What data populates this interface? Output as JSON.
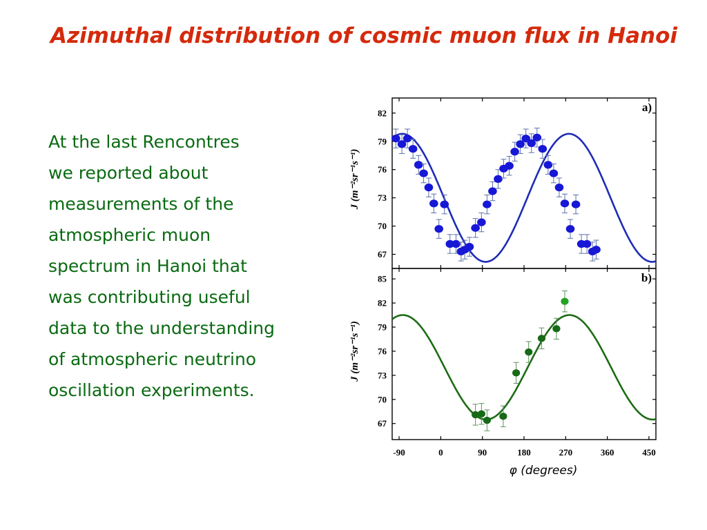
{
  "slide": {
    "title": "Azimuthal distribution of cosmic muon flux in Hanoi",
    "body_lines": [
      "At the last Rencontres",
      "we reported about",
      "measurements of the",
      "atmospheric muon",
      "spectrum in Hanoi that",
      "was contributing useful",
      "data to the understanding",
      "of atmospheric neutrino",
      "oscillation experiments."
    ]
  },
  "colors": {
    "title": "#d42a0c",
    "text": "#0a6a12",
    "panel_a_fit": "#1e2bb8",
    "panel_a_points": "#1717d6",
    "panel_b_fit": "#1d6b14",
    "panel_b_points": "#176a17",
    "panel_b_highlight": "#22a322"
  },
  "chart_data": [
    {
      "type": "scatter",
      "panel_label": "a)",
      "ylabel": "J (m⁻²sr⁻¹s⁻¹)",
      "xlabel": "",
      "xlim": [
        -105,
        465
      ],
      "ylim": [
        65.5,
        83.6
      ],
      "xticks": [],
      "yticks": [
        67,
        70,
        73,
        76,
        79,
        82
      ],
      "fit": {
        "offset": 73.0,
        "amplitude": 6.8,
        "period": 360,
        "max_at": 277
      },
      "series": [
        {
          "error": 1.0,
          "points": [
            [
              -97,
              79.3
            ],
            [
              -84,
              78.7
            ],
            [
              -72,
              79.3
            ],
            [
              -60,
              78.2
            ],
            [
              -48,
              76.5
            ],
            [
              -37,
              75.6
            ],
            [
              -26,
              74.1
            ],
            [
              -15,
              72.4
            ],
            [
              -4,
              69.7
            ],
            [
              8,
              72.3
            ],
            [
              20,
              68.1
            ],
            [
              33,
              68.1
            ],
            [
              44,
              67.3
            ],
            [
              52,
              67.5
            ],
            [
              62,
              67.8
            ],
            [
              75,
              69.8
            ],
            [
              88,
              70.4
            ],
            [
              100,
              72.3
            ],
            [
              112,
              73.7
            ],
            [
              124,
              75.0
            ],
            [
              136,
              76.1
            ],
            [
              148,
              76.4
            ],
            [
              160,
              77.9
            ],
            [
              172,
              78.7
            ],
            [
              184,
              79.3
            ],
            [
              196,
              78.8
            ],
            [
              208,
              79.4
            ],
            [
              220,
              78.2
            ],
            [
              232,
              76.5
            ],
            [
              244,
              75.6
            ],
            [
              256,
              74.1
            ],
            [
              268,
              72.4
            ],
            [
              280,
              69.7
            ],
            [
              292,
              72.3
            ],
            [
              304,
              68.1
            ],
            [
              316,
              68.1
            ],
            [
              328,
              67.3
            ],
            [
              336,
              67.5
            ]
          ]
        }
      ]
    },
    {
      "type": "scatter",
      "panel_label": "b)",
      "ylabel": "J (m⁻²sr⁻¹s⁻¹)",
      "xlabel": "φ (degrees)",
      "xlim": [
        -105,
        465
      ],
      "ylim": [
        65,
        86.3
      ],
      "xticks": [
        -90,
        0,
        90,
        180,
        270,
        360,
        450
      ],
      "yticks": [
        67,
        70,
        73,
        76,
        79,
        82,
        85
      ],
      "fit": {
        "offset": 74.0,
        "amplitude": 6.5,
        "period": 360,
        "max_at": 278
      },
      "series": [
        {
          "error": 1.3,
          "points": [
            [
              75,
              68.1
            ],
            [
              88,
              68.2
            ],
            [
              100,
              67.4
            ],
            [
              135,
              67.9
            ],
            [
              163,
              73.3
            ],
            [
              190,
              75.9
            ],
            [
              218,
              77.6
            ],
            [
              250,
              78.8
            ],
            [
              268,
              82.2
            ]
          ]
        }
      ]
    }
  ]
}
